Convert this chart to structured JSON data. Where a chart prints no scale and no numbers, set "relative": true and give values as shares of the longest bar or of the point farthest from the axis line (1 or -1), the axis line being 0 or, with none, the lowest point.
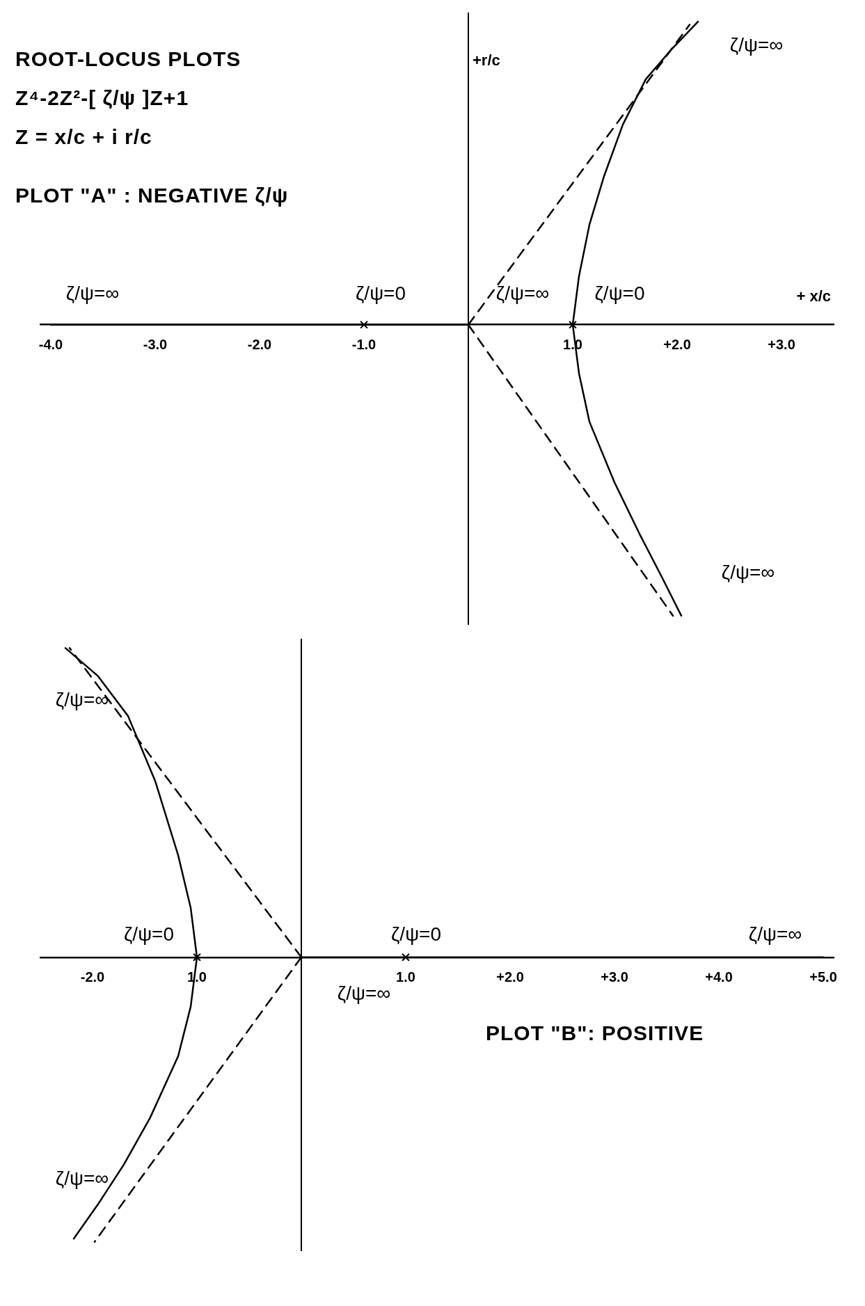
{
  "chart_data": [
    {
      "type": "line",
      "title": "ROOT-LOCUS PLOTS",
      "subtitle": "Z⁴-2Z²-[ ζ/ψ ]Z+1",
      "xlabel": "+ x/c",
      "ylabel": "+r/c",
      "relative": true,
      "xlim": [
        -4.1,
        3.5
      ],
      "xticks": [
        {
          "value": -4,
          "label": "-4.0"
        },
        {
          "value": -3,
          "label": "-3.0"
        },
        {
          "value": -2,
          "label": "-2.0"
        },
        {
          "value": -1,
          "label": "-1.0"
        },
        {
          "value": 1,
          "label": "1.0"
        },
        {
          "value": 2,
          "label": "+2.0"
        },
        {
          "value": 3,
          "label": "+3.0"
        }
      ],
      "series": [
        {
          "color": "#000000",
          "x": [
            1,
            1.06,
            1.16,
            1.3,
            1.48,
            1.7,
            1.95,
            2.2
          ],
          "values": [
            0,
            0.16,
            0.33,
            0.49,
            0.66,
            0.81,
            0.91,
            1
          ]
        },
        {
          "color": "#000000",
          "x": [
            1,
            1.06,
            1.16,
            1.4,
            1.64,
            1.85,
            2.04
          ],
          "values": [
            0,
            -0.16,
            -0.32,
            -0.52,
            -0.69,
            -0.83,
            -0.96
          ]
        },
        {
          "color": "#000000",
          "x": [
            -4,
            0
          ],
          "values": [
            0,
            0
          ]
        },
        {
          "color": "#000000",
          "line_style": "dashed",
          "x": [
            0,
            2.12
          ],
          "values": [
            0,
            0.99
          ]
        },
        {
          "color": "#000000",
          "line_style": "dashed",
          "x": [
            0,
            1.96
          ],
          "values": [
            0,
            -0.96
          ]
        },
        {
          "type": "scatter",
          "marker": "cross",
          "color": "#000000",
          "x": [
            -1,
            1
          ],
          "values": [
            0,
            0
          ]
        }
      ],
      "annotations": [
        "Z = x/c + i r/c",
        "PLOT \"A\" : NEGATIVE ζ/ψ",
        "ζ/ψ=∞",
        "ζ/ψ=0",
        "ζ/ψ=∞",
        "ζ/ψ=0",
        "ζ/ψ=∞",
        "ζ/ψ=∞"
      ]
    },
    {
      "type": "line",
      "title": "PLOT \"B\": POSITIVE",
      "relative": true,
      "xlim": [
        -2.5,
        5.1
      ],
      "xticks": [
        {
          "value": -2,
          "label": "-2.0"
        },
        {
          "value": -1,
          "label": "1.0"
        },
        {
          "value": 1,
          "label": "1.0"
        },
        {
          "value": 2,
          "label": "+2.0"
        },
        {
          "value": 3,
          "label": "+3.0"
        },
        {
          "value": 4,
          "label": "+4.0"
        },
        {
          "value": 5,
          "label": "+5.0"
        }
      ],
      "series": [
        {
          "color": "#000000",
          "x": [
            -1,
            -1.06,
            -1.18,
            -1.4,
            -1.66,
            -1.95,
            -2.26
          ],
          "values": [
            0,
            0.16,
            0.33,
            0.57,
            0.78,
            0.91,
            1
          ]
        },
        {
          "color": "#000000",
          "x": [
            -1,
            -1.06,
            -1.18,
            -1.45,
            -1.7,
            -1.95,
            -2.18
          ],
          "values": [
            0,
            -0.16,
            -0.32,
            -0.52,
            -0.67,
            -0.8,
            -0.91
          ]
        },
        {
          "color": "#000000",
          "x": [
            0,
            5
          ],
          "values": [
            0,
            0
          ]
        },
        {
          "color": "#000000",
          "line_style": "dashed",
          "x": [
            0,
            -2.22
          ],
          "values": [
            0,
            1
          ]
        },
        {
          "color": "#000000",
          "line_style": "dashed",
          "x": [
            0,
            -1.98
          ],
          "values": [
            0,
            -0.92
          ]
        },
        {
          "type": "scatter",
          "marker": "cross",
          "color": "#000000",
          "x": [
            -1,
            1
          ],
          "values": [
            0,
            0
          ]
        }
      ],
      "annotations": [
        "ζ/ψ=∞",
        "ζ/ψ=0",
        "ζ/ψ=0",
        "ζ/ψ=∞",
        "ζ/ψ=∞",
        "ζ/ψ=∞"
      ]
    }
  ]
}
